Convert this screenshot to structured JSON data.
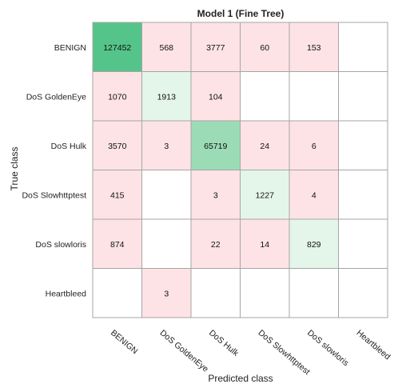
{
  "chart_data": {
    "type": "heatmap",
    "title": "Model 1 (Fine Tree)",
    "xlabel": "Predicted class",
    "ylabel": "True class",
    "rows": [
      "BENIGN",
      "DoS GoldenEye",
      "DoS Hulk",
      "DoS Slowhttptest",
      "DoS slowloris",
      "Heartbleed"
    ],
    "columns": [
      "BENIGN",
      "DoS GoldenEye",
      "DoS Hulk",
      "DoS Slowhttptest",
      "DoS slowloris",
      "Heartbleed"
    ],
    "values": [
      [
        127452,
        568,
        3777,
        60,
        153,
        null
      ],
      [
        1070,
        1913,
        104,
        null,
        null,
        null
      ],
      [
        3570,
        3,
        65719,
        24,
        6,
        null
      ],
      [
        415,
        null,
        3,
        1227,
        4,
        null
      ],
      [
        874,
        null,
        22,
        14,
        829,
        null
      ],
      [
        null,
        3,
        null,
        null,
        null,
        null
      ]
    ],
    "colors": {
      "diagonal_light": "#e4f5ea",
      "diagonal_mid": "#9bdcb6",
      "diagonal_dark": "#55c48a",
      "off_diagonal": "#fde3e5",
      "empty": "#ffffff",
      "grid": "#a6a6a6"
    }
  }
}
